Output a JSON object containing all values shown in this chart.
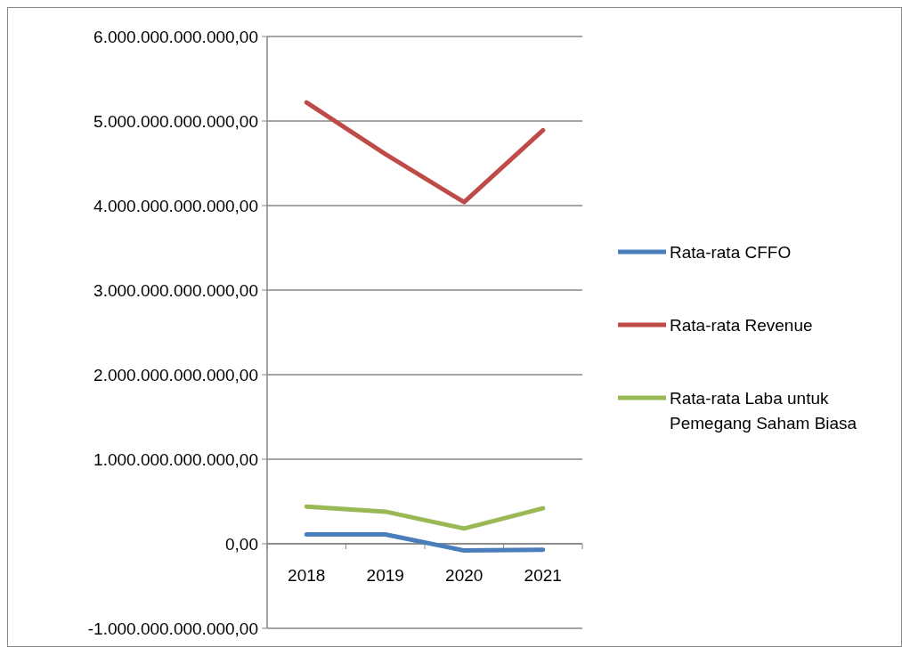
{
  "chart_data": {
    "type": "line",
    "categories": [
      "2018",
      "2019",
      "2020",
      "2021"
    ],
    "series": [
      {
        "name": "Rata-rata CFFO",
        "color": "#4a7ebb",
        "values": [
          110000000000,
          110000000000,
          -80000000000,
          -70000000000
        ]
      },
      {
        "name": "Rata-rata Revenue",
        "color": "#be4b48",
        "values": [
          5220000000000,
          4610000000000,
          4040000000000,
          4890000000000
        ]
      },
      {
        "name": "Rata-rata Laba untuk Pemegang Saham Biasa",
        "color": "#98b954",
        "values": [
          440000000000,
          380000000000,
          180000000000,
          420000000000
        ]
      }
    ],
    "ylim": [
      -1000000000000,
      6000000000000
    ],
    "yticks": [
      {
        "value": -1000000000000,
        "label": "-1.000.000.000.000,00"
      },
      {
        "value": 0,
        "label": "0,00"
      },
      {
        "value": 1000000000000,
        "label": "1.000.000.000.000,00"
      },
      {
        "value": 2000000000000,
        "label": "2.000.000.000.000,00"
      },
      {
        "value": 3000000000000,
        "label": "3.000.000.000.000,00"
      },
      {
        "value": 4000000000000,
        "label": "4.000.000.000.000,00"
      },
      {
        "value": 5000000000000,
        "label": "5.000.000.000.000,00"
      },
      {
        "value": 6000000000000,
        "label": "6.000.000.000.000,00"
      }
    ],
    "grid": "y",
    "legend": "right",
    "marker": "none",
    "line_style": "solid"
  }
}
